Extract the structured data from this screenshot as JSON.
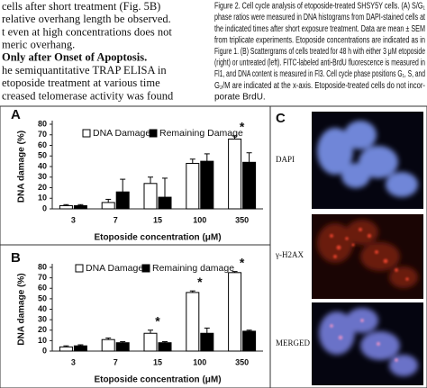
{
  "body_text": {
    "lines": [
      "cells after short treatment (Fig. 5B)",
      "relative overhang length be observed.",
      "t even at high concentrations does not",
      "meric overhang."
    ],
    "heading": "Only after Onset of Apoptosis.",
    "lines_after": [
      "he semiquantitative TRAP ELISA in",
      "etoposide treatment at various time",
      "creased telomerase activity was found"
    ]
  },
  "caption": {
    "lines": [
      "Figure 2. Cell cycle analysis of etoposide-treated SHSY5Y cells. (A) S/G₁",
      "phase ratios were measured in DNA histograms from DAPI-stained cells at",
      "the indicated times after short exposure treatment. Data are mean ± SEM",
      "from triplicate experiments. Etoposide concentrations are indicated as in",
      "Figure 1. (B) Scattergrams of cells treated for 48 h with either 3 μM etoposide",
      "(right) or untreated (left). FITC-labeled anti-BrdU fluorescence is measured in",
      "Fl1, and DNA content is measured in Fl3. Cell cycle phase positions G₁, S, and",
      "G₂/M are indicated at the x-axis. Etoposide-treated cells do not incor-",
      "porate BrdU."
    ]
  },
  "chart_data": [
    {
      "type": "bar",
      "panel": "A",
      "y_label": "DNA damage (%)",
      "x_label": "Etoposide concentration (μM)",
      "categories": [
        "3",
        "7",
        "15",
        "100",
        "350"
      ],
      "series": [
        {
          "name": "DNA Damage",
          "color": "#ffffff",
          "values": [
            3,
            6,
            24,
            43,
            66
          ],
          "errors": [
            1,
            3,
            6,
            4,
            3
          ]
        },
        {
          "name": "Remaining Damage",
          "color": "#000000",
          "values": [
            3,
            16,
            11,
            45,
            44
          ],
          "errors": [
            1,
            12,
            18,
            7,
            9
          ]
        }
      ],
      "ylim": [
        0,
        80
      ],
      "yticks": [
        0,
        10,
        20,
        30,
        40,
        50,
        60,
        70,
        80
      ],
      "annotations": [
        {
          "text": "*",
          "x": "350"
        }
      ]
    },
    {
      "type": "bar",
      "panel": "B",
      "y_label": "DNA damage (%)",
      "x_label": "Etoposide concentration (μM)",
      "categories": [
        "3",
        "7",
        "15",
        "100",
        "350"
      ],
      "series": [
        {
          "name": "DNA Damage",
          "color": "#ffffff",
          "values": [
            4,
            11,
            17,
            56,
            75
          ],
          "errors": [
            1,
            1.5,
            3,
            1.5,
            1
          ]
        },
        {
          "name": "Remaining damage",
          "color": "#000000",
          "values": [
            5,
            8,
            8,
            17,
            19
          ],
          "errors": [
            1,
            1,
            1,
            5,
            1
          ]
        }
      ],
      "ylim": [
        0,
        80
      ],
      "yticks": [
        0,
        10,
        20,
        30,
        40,
        50,
        60,
        70,
        80
      ],
      "annotations": [
        {
          "text": "*",
          "x": "15"
        },
        {
          "text": "*",
          "x": "100"
        },
        {
          "text": "*",
          "x": "350"
        }
      ]
    }
  ],
  "panel_c": {
    "panel": "C",
    "labels": [
      "DAPI",
      "γ-H2AX",
      "MERGED"
    ]
  }
}
